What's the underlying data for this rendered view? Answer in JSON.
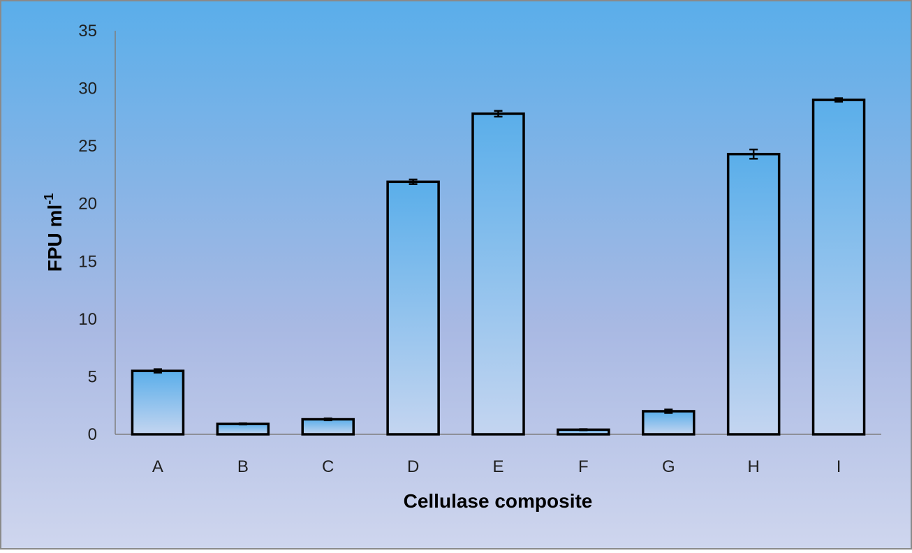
{
  "chart_data": {
    "type": "bar",
    "title": "",
    "xlabel": "Cellulase composite",
    "ylabel": "FPU ml",
    "ylabel_superscript": "-1",
    "categories": [
      "A",
      "B",
      "C",
      "D",
      "E",
      "F",
      "G",
      "H",
      "I"
    ],
    "values": [
      5.5,
      0.9,
      1.3,
      21.9,
      27.8,
      0.4,
      2.0,
      24.3,
      29.0
    ],
    "errors": [
      0.15,
      0.05,
      0.08,
      0.2,
      0.25,
      0.05,
      0.15,
      0.4,
      0.15
    ],
    "ylim": [
      0,
      35
    ],
    "yticks": [
      0,
      5,
      10,
      15,
      20,
      25,
      30,
      35
    ],
    "grid": false,
    "legend": "none",
    "colors": {
      "bg_top": "#5aaeea",
      "bg_mid": "#a9b9e3",
      "bg_bottom": "#cfd6ee",
      "bar_top": "#5aaeea",
      "bar_bottom": "#c4d5f0",
      "bar_stroke": "#000000",
      "axis": "#7f7f7f",
      "frame": "#8a8a8a"
    }
  }
}
